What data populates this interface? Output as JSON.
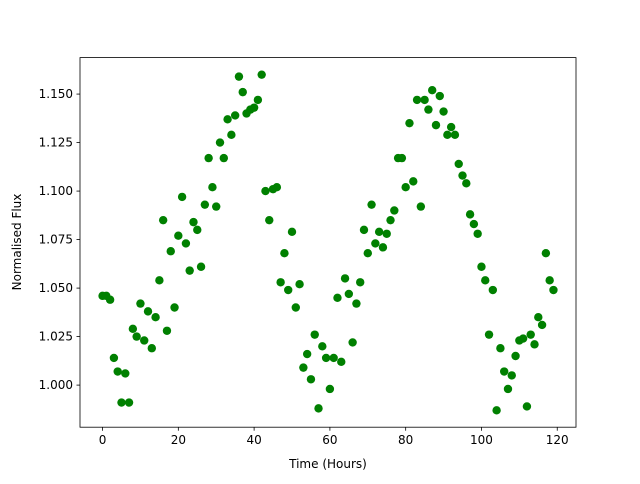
{
  "chart_data": {
    "type": "scatter",
    "xlabel": "Time (Hours)",
    "ylabel": "Normalised Flux",
    "color": "#008000",
    "x": [
      0,
      1,
      2,
      3,
      4,
      5,
      6,
      7,
      8,
      9,
      10,
      11,
      12,
      13,
      14,
      15,
      16,
      17,
      18,
      19,
      20,
      21,
      22,
      23,
      24,
      25,
      26,
      27,
      28,
      29,
      30,
      31,
      32,
      33,
      34,
      35,
      36,
      37,
      38,
      39,
      40,
      41,
      42,
      43,
      44,
      45,
      46,
      47,
      48,
      49,
      50,
      51,
      52,
      53,
      54,
      55,
      56,
      57,
      58,
      59,
      60,
      61,
      62,
      63,
      64,
      65,
      66,
      67,
      68,
      69,
      70,
      71,
      72,
      73,
      74,
      75,
      76,
      77,
      78,
      79,
      80,
      81,
      82,
      83,
      84,
      85,
      86,
      87,
      88,
      89,
      90,
      91,
      92,
      93,
      94,
      95,
      96,
      97,
      98,
      99,
      100,
      101,
      102,
      103,
      104,
      105,
      106,
      107,
      108,
      109,
      110,
      111,
      112,
      113,
      114,
      115,
      116,
      117,
      118,
      119
    ],
    "values": [
      1.046,
      1.046,
      1.044,
      1.014,
      1.007,
      0.991,
      1.006,
      0.991,
      1.029,
      1.025,
      1.042,
      1.023,
      1.038,
      1.019,
      1.035,
      1.054,
      1.085,
      1.028,
      1.069,
      1.04,
      1.077,
      1.097,
      1.073,
      1.059,
      1.084,
      1.08,
      1.061,
      1.093,
      1.117,
      1.102,
      1.092,
      1.125,
      1.117,
      1.137,
      1.129,
      1.139,
      1.159,
      1.151,
      1.14,
      1.142,
      1.143,
      1.147,
      1.16,
      1.1,
      1.085,
      1.101,
      1.102,
      1.053,
      1.068,
      1.049,
      1.079,
      1.04,
      1.052,
      1.009,
      1.016,
      1.003,
      1.026,
      0.988,
      1.02,
      1.014,
      0.998,
      1.014,
      1.045,
      1.012,
      1.055,
      1.047,
      1.022,
      1.042,
      1.053,
      1.08,
      1.068,
      1.093,
      1.073,
      1.079,
      1.071,
      1.078,
      1.085,
      1.09,
      1.117,
      1.117,
      1.102,
      1.135,
      1.105,
      1.147,
      1.092,
      1.147,
      1.142,
      1.152,
      1.134,
      1.149,
      1.141,
      1.129,
      1.133,
      1.129,
      1.114,
      1.108,
      1.104,
      1.088,
      1.083,
      1.078,
      1.061,
      1.054,
      1.026,
      1.049,
      0.987,
      1.019,
      1.007,
      0.998,
      1.005,
      1.015,
      1.023,
      1.024,
      0.989,
      1.026,
      1.021,
      1.035,
      1.031,
      1.068,
      1.054,
      1.049
    ],
    "xlim": [
      -5.95,
      124.95
    ],
    "xticks": [
      0,
      20,
      40,
      60,
      80,
      100,
      120
    ],
    "ylim": [
      0.9783,
      1.1688
    ],
    "yticks": [
      {
        "value": 1.0,
        "label": "1.000"
      },
      {
        "value": 1.025,
        "label": "1.025"
      },
      {
        "value": 1.05,
        "label": "1.050"
      },
      {
        "value": 1.075,
        "label": "1.075"
      },
      {
        "value": 1.1,
        "label": "1.100"
      },
      {
        "value": 1.125,
        "label": "1.125"
      },
      {
        "value": 1.15,
        "label": "1.150"
      }
    ]
  }
}
